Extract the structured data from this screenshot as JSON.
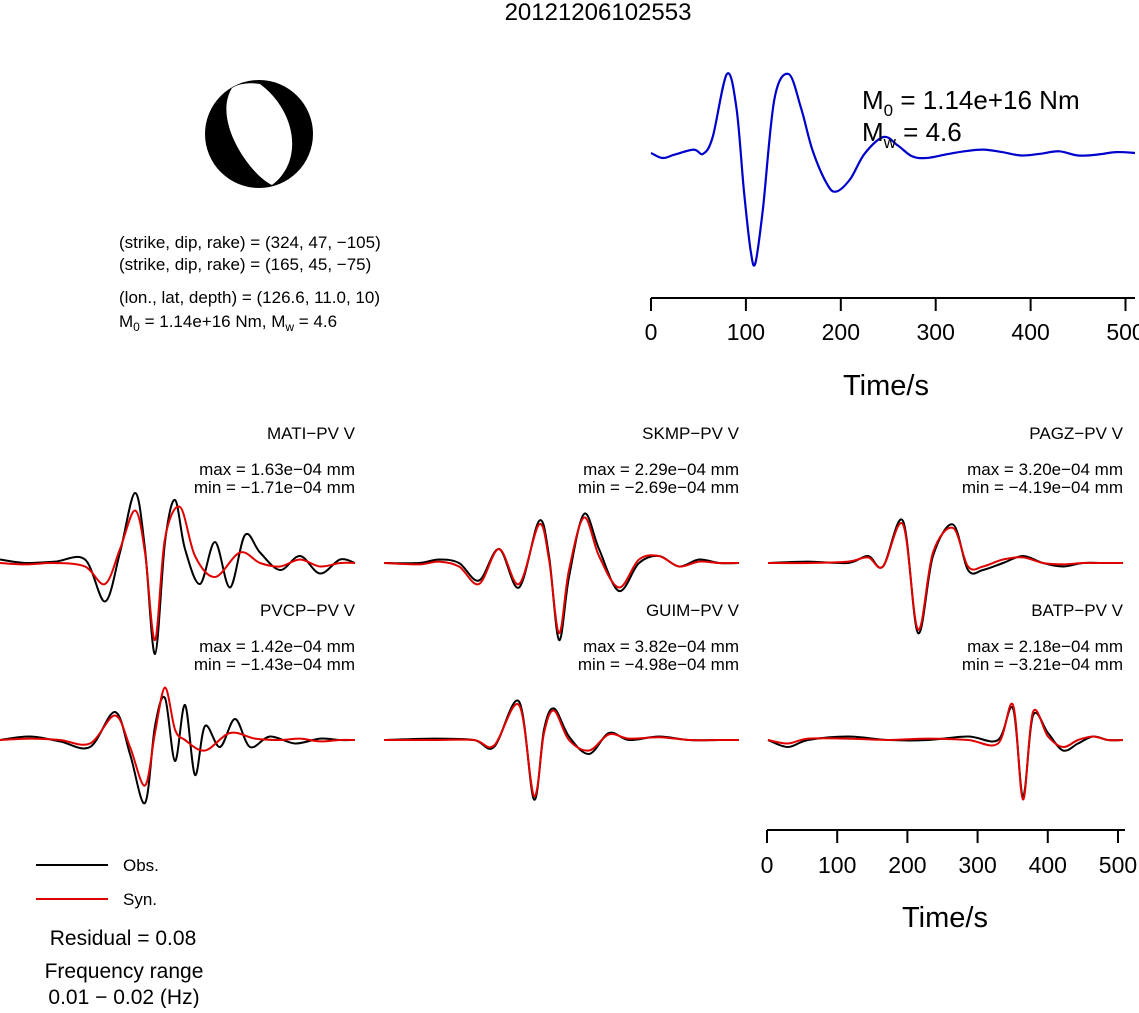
{
  "title": "20121206102553",
  "focal_mechanism": {
    "plane1": "(strike, dip, rake) = (324, 47, −105)",
    "plane2": "(strike, dip, rake) = (165, 45, −75)",
    "location": "(lon., lat, depth) = (126.6, 11.0, 10)",
    "moment_prefix": "M",
    "moment_sub": "0",
    "moment_mid": " = 1.14e+16 Nm, M",
    "mw_sub": "w",
    "moment_suffix": " = 4.6"
  },
  "stf": {
    "m0_prefix": "M",
    "m0_sub": "0",
    "m0_suffix": " = 1.14e+16 Nm",
    "mw_prefix": "M",
    "mw_sub": "w",
    "mw_suffix": " = 4.6",
    "xlabel": "Time/s"
  },
  "waveform_axis": {
    "xlabel": "Time/s"
  },
  "legend": {
    "obs": "Obs.",
    "syn": "Syn."
  },
  "residual": "Residual = 0.08",
  "frequency": {
    "line1": "Frequency range",
    "line2": "0.01 − 0.02 (Hz)"
  },
  "stations": [
    {
      "label": "MATI−PV V",
      "max": "max = 1.63e−04 mm",
      "min": "min = −1.71e−04 mm"
    },
    {
      "label": "SKMP−PV V",
      "max": "max = 2.29e−04 mm",
      "min": "min = −2.69e−04 mm"
    },
    {
      "label": "PAGZ−PV V",
      "max": "max = 3.20e−04 mm",
      "min": "min = −4.19e−04 mm"
    },
    {
      "label": "PVCP−PV V",
      "max": "max = 1.42e−04 mm",
      "min": "min = −1.43e−04 mm"
    },
    {
      "label": "GUIM−PV V",
      "max": "max = 3.82e−04 mm",
      "min": "min = −4.98e−04 mm"
    },
    {
      "label": "BATP−PV V",
      "max": "max = 2.18e−04 mm",
      "min": "min = −3.21e−04 mm"
    }
  ],
  "colors": {
    "obs": "#000000",
    "syn": "#e00000",
    "stf": "#0000cc"
  },
  "chart_data": [
    {
      "type": "line",
      "xlabel": "Time/s",
      "ylabel": "",
      "xlim": [
        0,
        510
      ],
      "xticks": [
        0,
        100,
        200,
        300,
        400,
        500
      ],
      "series": [
        {
          "x": [
            0,
            12,
            25,
            45,
            55,
            65,
            80,
            90,
            98,
            105,
            110,
            118,
            130,
            145,
            158,
            170,
            185,
            195,
            210,
            225,
            245,
            260,
            275,
            290,
            310,
            330,
            350,
            370,
            390,
            410,
            430,
            450,
            470,
            490,
            510
          ],
          "values": [
            0.06,
            0.0,
            0.04,
            0.1,
            0.05,
            0.25,
            1.0,
            0.6,
            -0.4,
            -1.1,
            -1.25,
            -0.6,
            0.7,
            1.0,
            0.6,
            0.1,
            -0.3,
            -0.4,
            -0.25,
            0.05,
            0.25,
            0.15,
            0.02,
            0.0,
            0.04,
            0.08,
            0.1,
            0.07,
            0.03,
            0.05,
            0.08,
            0.03,
            0.04,
            0.07,
            0.06
          ]
        }
      ]
    },
    {
      "type": "line",
      "xlabel": "Time/s",
      "ylabel": "",
      "xlim": [
        0,
        510
      ],
      "xticks": [
        0,
        100,
        200,
        300,
        400,
        500
      ],
      "panels": [
        {
          "station": "MATI−PV V",
          "series": [
            {
              "name": "Obs.",
              "x": [
                0,
                25,
                55,
                85,
                105,
                120,
                135,
                145,
                155,
                165,
                175,
                185,
                200,
                215,
                230,
                245,
                260,
                280,
                300,
                320,
                340,
                355
              ],
              "values": [
                0.05,
                0.0,
                0.02,
                0.05,
                -0.55,
                0.15,
                1.0,
                0.2,
                -1.3,
                0.3,
                0.9,
                0.2,
                -0.3,
                0.3,
                -0.35,
                0.4,
                0.15,
                -0.1,
                0.1,
                -0.15,
                0.05,
                0.0
              ]
            },
            {
              "name": "Syn.",
              "x": [
                0,
                25,
                55,
                85,
                105,
                120,
                135,
                145,
                155,
                165,
                180,
                195,
                215,
                240,
                260,
                280,
                300,
                320,
                340,
                355
              ],
              "values": [
                0.0,
                -0.02,
                0.0,
                -0.05,
                -0.3,
                0.2,
                0.75,
                0.15,
                -1.1,
                0.35,
                0.8,
                0.1,
                -0.2,
                0.15,
                0.0,
                -0.05,
                0.05,
                -0.05,
                0.0,
                0.0
              ]
            }
          ]
        },
        {
          "station": "SKMP−PV V",
          "series": [
            {
              "name": "Obs.",
              "x": [
                0,
                35,
                55,
                75,
                95,
                115,
                135,
                155,
                165,
                175,
                185,
                200,
                215,
                235,
                255,
                275,
                295,
                315,
                335,
                355
              ],
              "values": [
                0.0,
                0.0,
                0.05,
                0.0,
                -0.25,
                0.2,
                -0.35,
                0.6,
                0.1,
                -1.1,
                -0.2,
                0.7,
                0.2,
                -0.4,
                0.0,
                0.1,
                -0.05,
                0.05,
                0.0,
                0.0
              ]
            },
            {
              "name": "Syn.",
              "x": [
                0,
                35,
                55,
                75,
                95,
                115,
                135,
                155,
                165,
                175,
                185,
                200,
                215,
                235,
                255,
                275,
                295,
                315,
                335,
                355
              ],
              "values": [
                0.0,
                -0.02,
                0.02,
                -0.05,
                -0.3,
                0.2,
                -0.3,
                0.55,
                0.05,
                -1.0,
                -0.1,
                0.65,
                0.1,
                -0.35,
                0.05,
                0.1,
                -0.05,
                0.02,
                0.0,
                0.0
              ]
            }
          ]
        },
        {
          "station": "PAGZ−PV V",
          "series": [
            {
              "name": "Obs.",
              "x": [
                0,
                40,
                80,
                100,
                115,
                135,
                150,
                165,
                185,
                200,
                215,
                235,
                255,
                275,
                295,
                315,
                335,
                355
              ],
              "values": [
                0.0,
                0.02,
                0.0,
                0.1,
                -0.05,
                0.6,
                -1.0,
                0.1,
                0.55,
                -0.1,
                -0.1,
                0.0,
                0.1,
                0.0,
                -0.05,
                0.0,
                0.0,
                0.0
              ]
            },
            {
              "name": "Syn.",
              "x": [
                0,
                40,
                80,
                100,
                115,
                135,
                150,
                165,
                185,
                200,
                215,
                235,
                255,
                275,
                295,
                315,
                335,
                355
              ],
              "values": [
                0.0,
                0.0,
                0.02,
                0.08,
                -0.05,
                0.55,
                -0.95,
                0.15,
                0.5,
                -0.05,
                -0.05,
                0.05,
                0.08,
                0.0,
                -0.02,
                0.0,
                0.0,
                0.0
              ]
            }
          ]
        },
        {
          "station": "PVCP−PV V",
          "series": [
            {
              "name": "Obs.",
              "x": [
                0,
                30,
                60,
                90,
                115,
                130,
                145,
                155,
                165,
                175,
                185,
                195,
                205,
                220,
                235,
                250,
                270,
                295,
                320,
                340,
                355
              ],
              "values": [
                0.0,
                0.05,
                -0.02,
                -0.1,
                0.4,
                -0.2,
                -0.9,
                0.2,
                0.6,
                -0.3,
                0.5,
                -0.5,
                0.2,
                -0.1,
                0.3,
                -0.1,
                0.05,
                -0.05,
                0.02,
                0.0,
                0.0
              ]
            },
            {
              "name": "Syn.",
              "x": [
                0,
                30,
                60,
                90,
                115,
                130,
                145,
                155,
                165,
                175,
                185,
                205,
                230,
                255,
                280,
                300,
                320,
                340,
                355
              ],
              "values": [
                0.0,
                0.02,
                0.0,
                -0.05,
                0.35,
                -0.1,
                -0.65,
                0.1,
                0.75,
                0.15,
                0.0,
                -0.15,
                0.1,
                0.02,
                0.0,
                0.02,
                -0.02,
                0.0,
                0.0
              ]
            }
          ]
        },
        {
          "station": "GUIM−PV V",
          "series": [
            {
              "name": "Obs.",
              "x": [
                0,
                50,
                90,
                110,
                135,
                150,
                160,
                170,
                185,
                205,
                225,
                245,
                275,
                305,
                335,
                355
              ],
              "values": [
                0.0,
                0.02,
                0.0,
                -0.1,
                0.55,
                -0.85,
                0.15,
                0.45,
                0.05,
                -0.2,
                0.1,
                0.0,
                0.05,
                0.0,
                0.0,
                0.0
              ]
            },
            {
              "name": "Syn.",
              "x": [
                0,
                50,
                90,
                110,
                135,
                150,
                160,
                170,
                185,
                205,
                225,
                245,
                275,
                305,
                335,
                355
              ],
              "values": [
                0.0,
                0.0,
                0.0,
                -0.08,
                0.5,
                -0.8,
                0.1,
                0.42,
                0.0,
                -0.15,
                0.08,
                0.02,
                0.04,
                0.0,
                0.0,
                0.0
              ]
            }
          ]
        },
        {
          "station": "BATP−PV V",
          "series": [
            {
              "name": "Obs.",
              "x": [
                0,
                20,
                40,
                80,
                120,
                160,
                200,
                230,
                245,
                255,
                265,
                280,
                295,
                310,
                325,
                340,
                355
              ],
              "values": [
                0.0,
                -0.1,
                0.0,
                0.05,
                0.0,
                0.0,
                0.05,
                0.0,
                0.45,
                -0.8,
                0.35,
                0.1,
                -0.15,
                -0.05,
                0.05,
                0.0,
                0.0
              ]
            },
            {
              "name": "Syn.",
              "x": [
                0,
                20,
                40,
                80,
                120,
                160,
                200,
                230,
                245,
                255,
                265,
                280,
                295,
                310,
                325,
                340,
                355
              ],
              "values": [
                0.0,
                -0.05,
                0.02,
                0.02,
                0.0,
                0.02,
                0.0,
                -0.05,
                0.5,
                -0.85,
                0.4,
                0.05,
                -0.1,
                0.0,
                0.05,
                0.0,
                0.0
              ]
            }
          ]
        }
      ]
    }
  ]
}
